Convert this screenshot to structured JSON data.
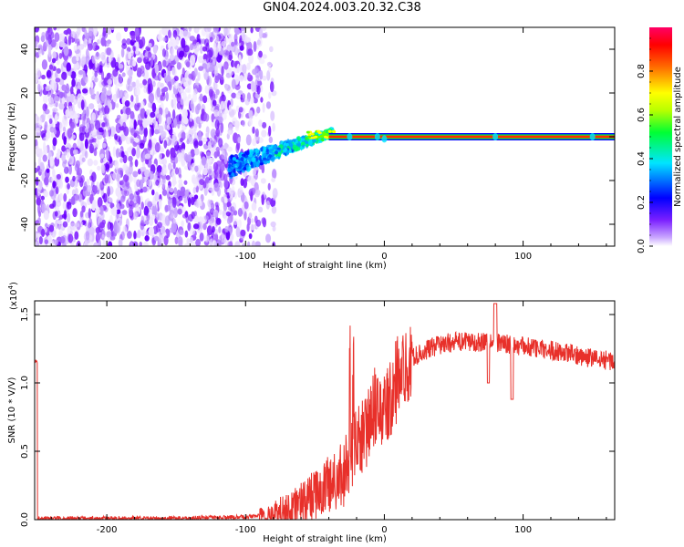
{
  "figure_title": "GN04.2024.003.20.32.C38",
  "chart_data": [
    {
      "type": "heatmap",
      "title": "",
      "xlabel": "Height of straight line (km)",
      "ylabel": "Frequency (Hz)",
      "xlim": [
        -252,
        166
      ],
      "ylim": [
        -50,
        50
      ],
      "xticks": [
        -200,
        -100,
        0,
        100
      ],
      "yticks": [
        -40,
        -20,
        0,
        20,
        40
      ],
      "colorbar": {
        "label": "Normalized spectral amplitude",
        "range": [
          0,
          1
        ],
        "ticks": [
          "0.0",
          "0.2",
          "0.4",
          "0.6",
          "0.8"
        ],
        "colormap": [
          "#ffffff",
          "#c9a6ff",
          "#7a1fff",
          "#0000ff",
          "#00e5ff",
          "#00ff33",
          "#b8ff00",
          "#ffff00",
          "#ff6a00",
          "#ff0000",
          "#ff0066"
        ]
      },
      "regions": [
        {
          "x": [
            -252,
            -110
          ],
          "description_value": 0.2
        },
        {
          "x": [
            -110,
            -40
          ],
          "freq_start": -15,
          "freq_end": 2
        },
        {
          "x": [
            -40,
            166
          ],
          "freq": 0,
          "peak_amplitude": 0.9
        }
      ]
    },
    {
      "type": "line",
      "title": "",
      "xlabel": "Height of straight line (km)",
      "ylabel": "SNR (10 * V/V)",
      "y_scale_label": "(x10",
      "y_scale_exp": "4",
      "xlim": [
        -252,
        166
      ],
      "ylim": [
        0,
        1.6
      ],
      "xticks": [
        -200,
        -100,
        0,
        100
      ],
      "yticks": [
        "0.0",
        "0.5",
        "1.0",
        "1.5"
      ],
      "color": "#e8302a",
      "series": [
        {
          "name": "",
          "x": [
            -250,
            -200,
            -150,
            -100,
            -80,
            -60,
            -50,
            -40,
            -30,
            -25,
            -20,
            -15,
            -10,
            -5,
            0,
            5,
            10,
            15,
            20,
            30,
            40,
            50,
            60,
            70,
            80,
            90,
            100,
            110,
            120,
            130,
            140,
            150,
            166
          ],
          "y": [
            0.01,
            0.01,
            0.01,
            0.02,
            0.04,
            0.12,
            0.18,
            0.25,
            0.32,
            0.45,
            0.55,
            0.62,
            0.7,
            0.76,
            0.82,
            0.9,
            1.0,
            1.1,
            1.18,
            1.24,
            1.28,
            1.3,
            1.3,
            1.3,
            1.3,
            1.28,
            1.27,
            1.25,
            1.24,
            1.22,
            1.2,
            1.18,
            1.16
          ]
        }
      ]
    }
  ]
}
